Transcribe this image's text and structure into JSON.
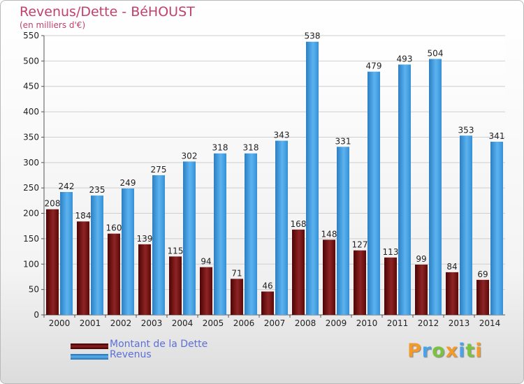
{
  "chart_data": {
    "type": "bar",
    "title": "Revenus/Dette - BéHOUST",
    "subtitle": "(en milliers d'€)",
    "categories": [
      "2000",
      "2001",
      "2002",
      "2003",
      "2004",
      "2005",
      "2006",
      "2007",
      "2008",
      "2009",
      "2010",
      "2011",
      "2012",
      "2013",
      "2014"
    ],
    "series": [
      {
        "name": "Montant de la Dette",
        "color": "#7a1515",
        "values": [
          208,
          184,
          160,
          139,
          115,
          94,
          71,
          46,
          168,
          148,
          127,
          113,
          99,
          84,
          69
        ]
      },
      {
        "name": "Revenus",
        "color": "#4aa3e6",
        "values": [
          242,
          235,
          249,
          275,
          302,
          318,
          318,
          343,
          538,
          331,
          479,
          493,
          504,
          353,
          341
        ]
      }
    ],
    "ylim": [
      0,
      550
    ],
    "yticks": [
      0,
      50,
      100,
      150,
      200,
      250,
      300,
      350,
      400,
      450,
      500,
      550
    ],
    "grid": true,
    "legend_position": "bottom-left"
  },
  "brand": {
    "letters": [
      "P",
      "r",
      "o",
      "x",
      "i",
      "t",
      "i"
    ],
    "colors": [
      "#f39a2b",
      "#4aa3e6",
      "#7cc242",
      "#f39a2b",
      "#4aa3e6",
      "#7cc242",
      "#f39a2b"
    ]
  }
}
